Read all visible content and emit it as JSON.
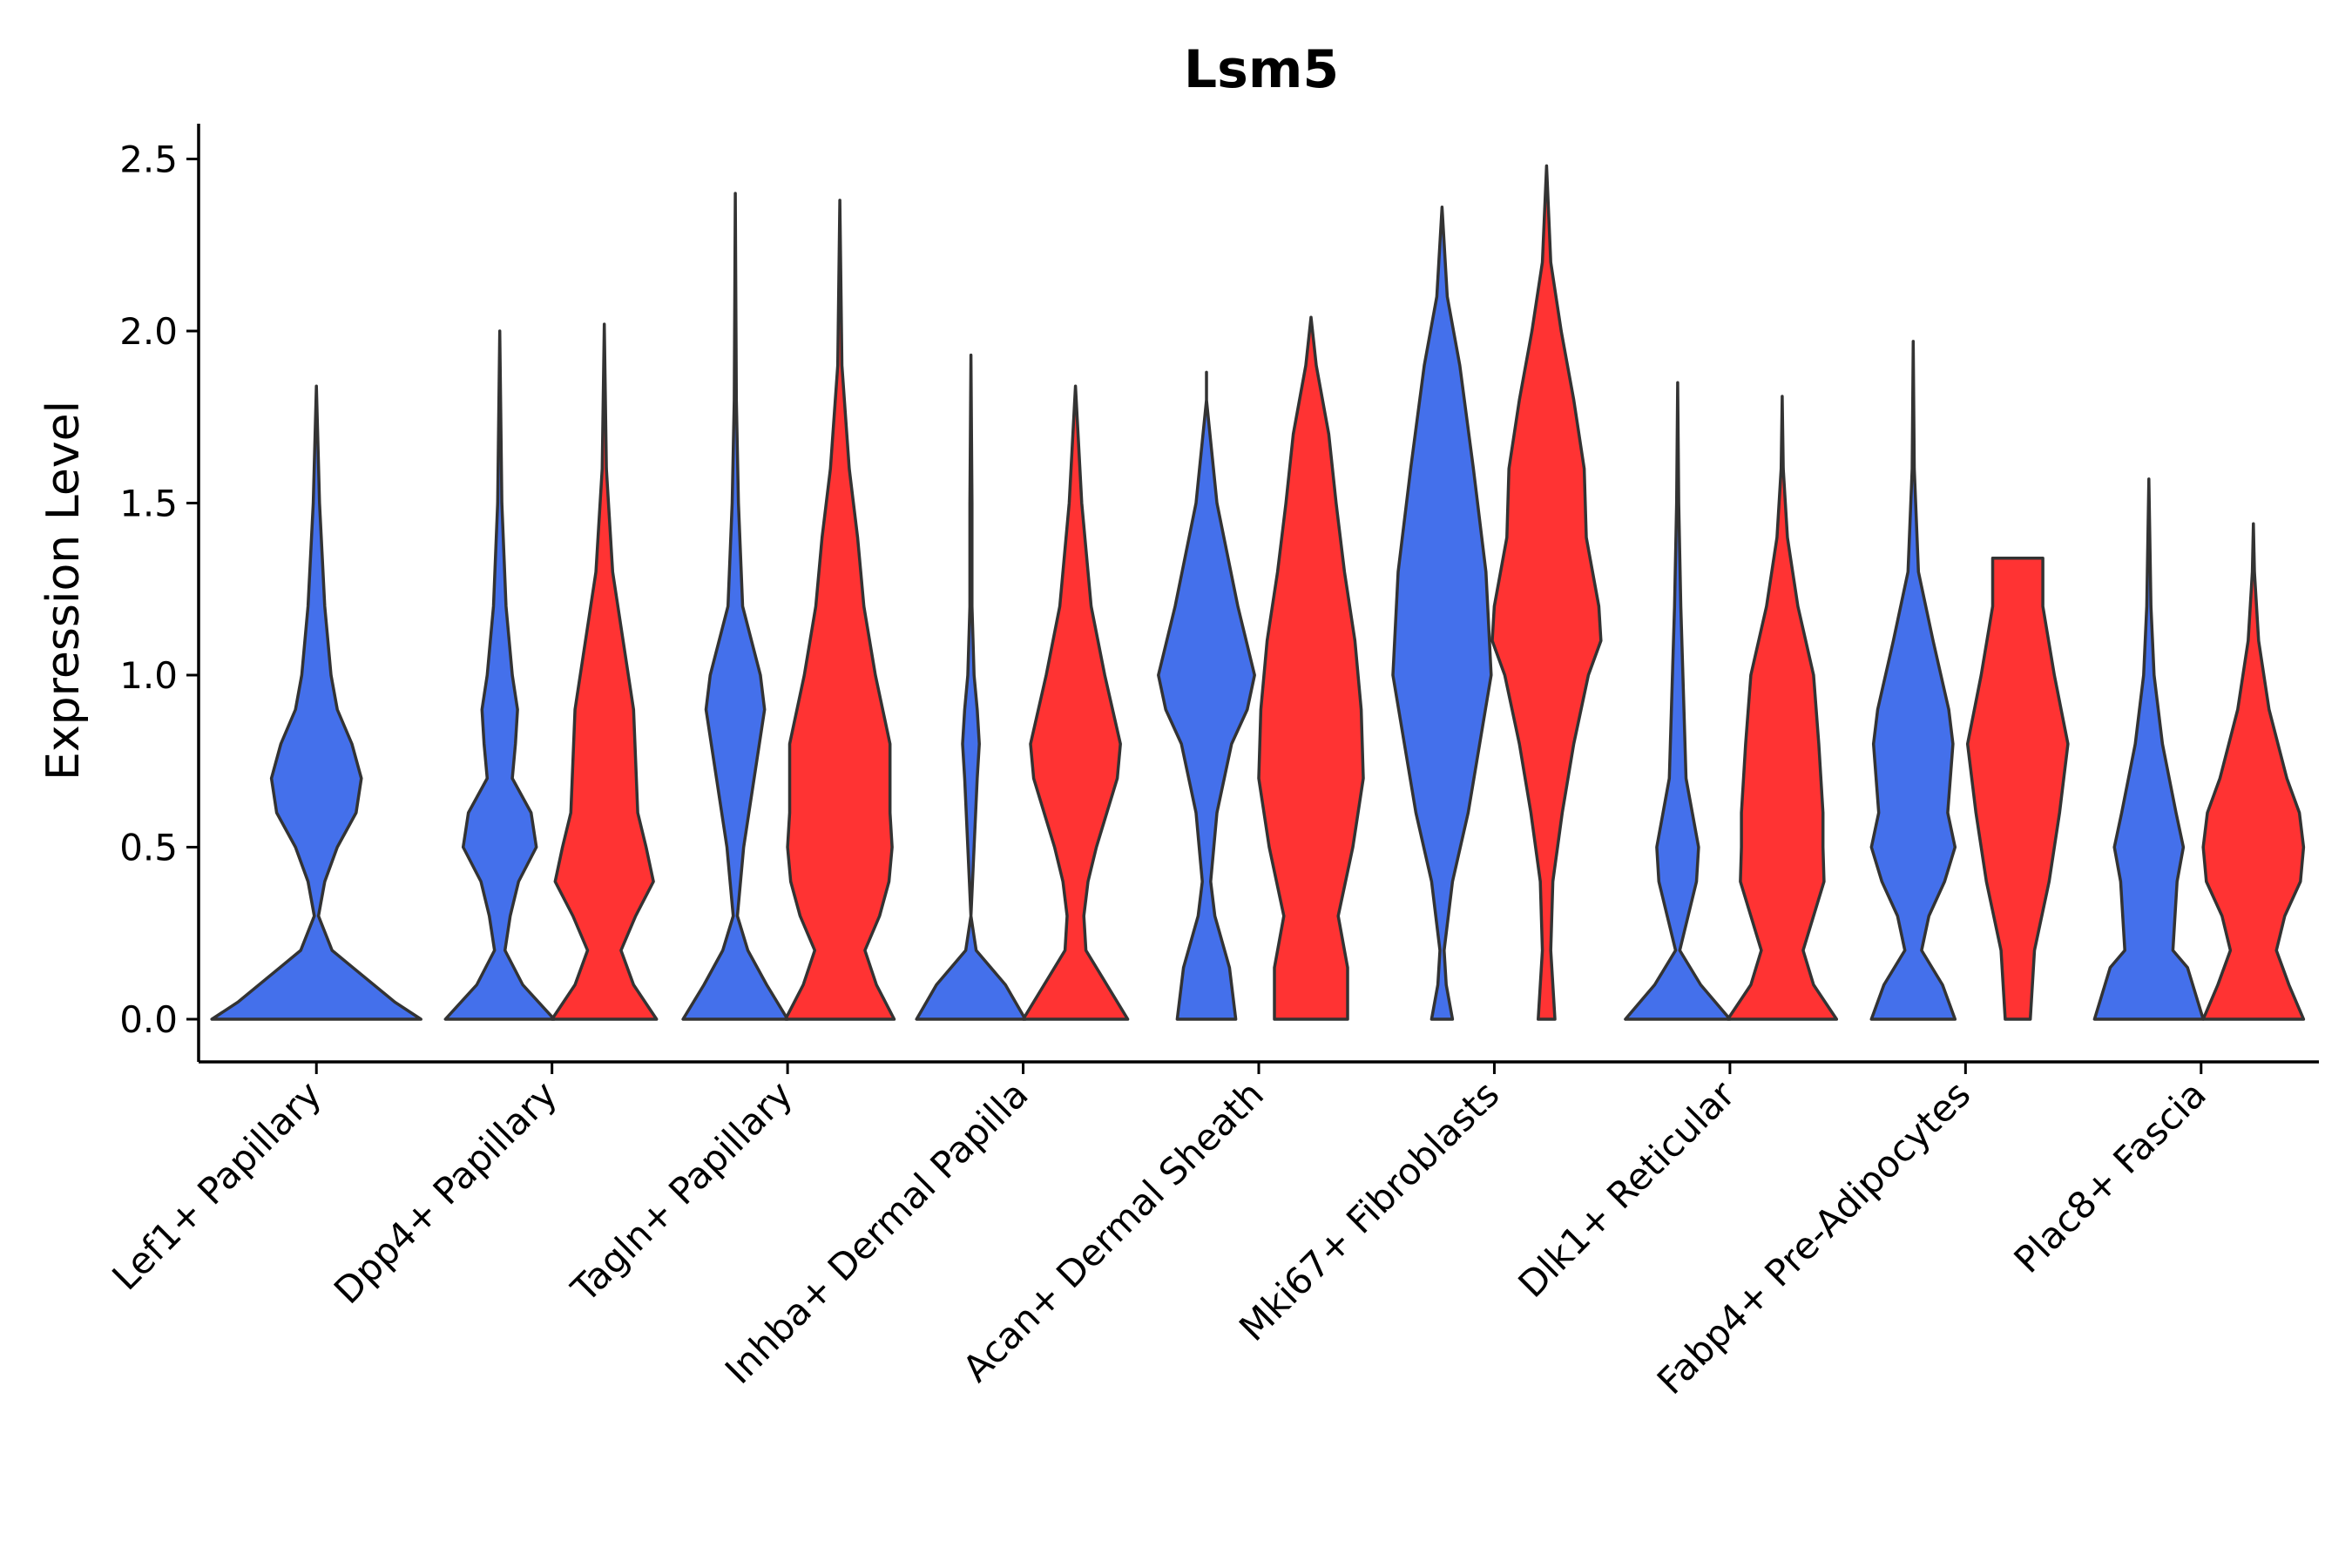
{
  "chart_data": {
    "type": "violin",
    "title": "Lsm5",
    "xlabel": "",
    "ylabel": "Expression Level",
    "ylim": [
      -0.12,
      2.6
    ],
    "yticks": [
      0.0,
      0.5,
      1.0,
      1.5,
      2.0,
      2.5
    ],
    "ytick_labels": [
      "0.0",
      "0.5",
      "1.0",
      "1.5",
      "2.0",
      "2.5"
    ],
    "grid": false,
    "legend": "none",
    "categories": [
      "Lef1+ Papillary",
      "Dpp4+ Papillary",
      "Tagln+ Papillary",
      "Inhba+ Dermal Papilla",
      "Acan+ Dermal Sheath",
      "Mki67+ Fibroblasts",
      "Dlk1+ Reticular",
      "Fabp4+ Pre-Adipocytes",
      "Plac8+ Fascia"
    ],
    "series": [
      {
        "name": "blue",
        "color": "#4470EB",
        "violins": [
          {
            "category": "Lef1+ Papillary",
            "max": 1.84,
            "profile": [
              [
                0.0,
                1.0
              ],
              [
                0.05,
                0.75
              ],
              [
                0.15,
                0.35
              ],
              [
                0.2,
                0.15
              ],
              [
                0.3,
                0.02
              ],
              [
                0.4,
                0.08
              ],
              [
                0.5,
                0.2
              ],
              [
                0.6,
                0.38
              ],
              [
                0.7,
                0.43
              ],
              [
                0.8,
                0.34
              ],
              [
                0.9,
                0.2
              ],
              [
                1.0,
                0.14
              ],
              [
                1.2,
                0.08
              ],
              [
                1.5,
                0.03
              ],
              [
                1.84,
                0.0
              ]
            ]
          },
          {
            "category": "Dpp4+ Papillary",
            "max": 2.0,
            "profile": [
              [
                0.0,
                0.52
              ],
              [
                0.1,
                0.22
              ],
              [
                0.2,
                0.05
              ],
              [
                0.3,
                0.1
              ],
              [
                0.4,
                0.18
              ],
              [
                0.5,
                0.35
              ],
              [
                0.6,
                0.3
              ],
              [
                0.7,
                0.12
              ],
              [
                0.8,
                0.15
              ],
              [
                0.9,
                0.17
              ],
              [
                1.0,
                0.12
              ],
              [
                1.2,
                0.06
              ],
              [
                1.5,
                0.02
              ],
              [
                2.0,
                0.0
              ]
            ]
          },
          {
            "category": "Tagln+ Papillary",
            "max": 2.4,
            "profile": [
              [
                0.0,
                0.5
              ],
              [
                0.1,
                0.3
              ],
              [
                0.2,
                0.12
              ],
              [
                0.3,
                0.02
              ],
              [
                0.5,
                0.08
              ],
              [
                0.7,
                0.18
              ],
              [
                0.9,
                0.28
              ],
              [
                1.0,
                0.24
              ],
              [
                1.2,
                0.07
              ],
              [
                1.5,
                0.03
              ],
              [
                1.8,
                0.01
              ],
              [
                2.4,
                0.0
              ]
            ]
          },
          {
            "category": "Inhba+ Dermal Papilla",
            "max": 1.93,
            "profile": [
              [
                0.0,
                0.52
              ],
              [
                0.1,
                0.33
              ],
              [
                0.2,
                0.05
              ],
              [
                0.3,
                0.0
              ],
              [
                0.5,
                0.03
              ],
              [
                0.7,
                0.06
              ],
              [
                0.8,
                0.08
              ],
              [
                0.9,
                0.06
              ],
              [
                1.0,
                0.03
              ],
              [
                1.2,
                0.01
              ],
              [
                1.5,
                0.01
              ],
              [
                1.93,
                0.0
              ]
            ]
          },
          {
            "category": "Acan+ Dermal Sheath",
            "max": 1.88,
            "profile": [
              [
                0.0,
                0.28
              ],
              [
                0.15,
                0.22
              ],
              [
                0.3,
                0.08
              ],
              [
                0.4,
                0.04
              ],
              [
                0.6,
                0.1
              ],
              [
                0.8,
                0.24
              ],
              [
                0.9,
                0.39
              ],
              [
                1.0,
                0.46
              ],
              [
                1.2,
                0.3
              ],
              [
                1.5,
                0.1
              ],
              [
                1.8,
                0.0
              ],
              [
                1.88,
                0.0
              ]
            ]
          },
          {
            "category": "Mki67+ Fibroblasts",
            "max": 2.36,
            "profile": [
              [
                0.0,
                0.1
              ],
              [
                0.1,
                0.04
              ],
              [
                0.2,
                0.02
              ],
              [
                0.4,
                0.1
              ],
              [
                0.6,
                0.25
              ],
              [
                0.8,
                0.36
              ],
              [
                1.0,
                0.47
              ],
              [
                1.3,
                0.42
              ],
              [
                1.6,
                0.3
              ],
              [
                1.9,
                0.17
              ],
              [
                2.1,
                0.05
              ],
              [
                2.36,
                0.0
              ]
            ]
          },
          {
            "category": "Dlk1+ Reticular",
            "max": 1.85,
            "profile": [
              [
                0.0,
                0.5
              ],
              [
                0.1,
                0.22
              ],
              [
                0.2,
                0.02
              ],
              [
                0.3,
                0.1
              ],
              [
                0.4,
                0.18
              ],
              [
                0.5,
                0.2
              ],
              [
                0.6,
                0.14
              ],
              [
                0.7,
                0.08
              ],
              [
                0.9,
                0.06
              ],
              [
                1.2,
                0.03
              ],
              [
                1.5,
                0.01
              ],
              [
                1.85,
                0.0
              ]
            ]
          },
          {
            "category": "Fabp4+ Pre-Adipocytes",
            "max": 1.97,
            "profile": [
              [
                0.0,
                0.4
              ],
              [
                0.1,
                0.28
              ],
              [
                0.2,
                0.08
              ],
              [
                0.3,
                0.15
              ],
              [
                0.4,
                0.3
              ],
              [
                0.5,
                0.4
              ],
              [
                0.6,
                0.33
              ],
              [
                0.8,
                0.38
              ],
              [
                0.9,
                0.34
              ],
              [
                1.1,
                0.19
              ],
              [
                1.3,
                0.05
              ],
              [
                1.6,
                0.01
              ],
              [
                1.97,
                0.0
              ]
            ]
          },
          {
            "category": "Plac8+ Fascia",
            "max": 1.57,
            "profile": [
              [
                0.0,
                0.52
              ],
              [
                0.15,
                0.37
              ],
              [
                0.2,
                0.23
              ],
              [
                0.4,
                0.27
              ],
              [
                0.5,
                0.33
              ],
              [
                0.6,
                0.26
              ],
              [
                0.8,
                0.13
              ],
              [
                1.0,
                0.05
              ],
              [
                1.2,
                0.02
              ],
              [
                1.57,
                0.0
              ]
            ]
          }
        ]
      },
      {
        "name": "red",
        "color": "#FF3333",
        "violins": [
          {
            "category": "Dpp4+ Papillary",
            "max": 2.02,
            "profile": [
              [
                0.0,
                0.5
              ],
              [
                0.1,
                0.28
              ],
              [
                0.2,
                0.16
              ],
              [
                0.3,
                0.3
              ],
              [
                0.4,
                0.47
              ],
              [
                0.5,
                0.4
              ],
              [
                0.6,
                0.32
              ],
              [
                0.9,
                0.28
              ],
              [
                1.1,
                0.18
              ],
              [
                1.3,
                0.08
              ],
              [
                1.6,
                0.02
              ],
              [
                2.02,
                0.0
              ]
            ]
          },
          {
            "category": "Tagln+ Papillary",
            "max": 2.38,
            "profile": [
              [
                0.0,
                0.52
              ],
              [
                0.1,
                0.35
              ],
              [
                0.2,
                0.24
              ],
              [
                0.3,
                0.38
              ],
              [
                0.4,
                0.47
              ],
              [
                0.5,
                0.5
              ],
              [
                0.6,
                0.48
              ],
              [
                0.8,
                0.48
              ],
              [
                1.0,
                0.34
              ],
              [
                1.2,
                0.23
              ],
              [
                1.4,
                0.17
              ],
              [
                1.6,
                0.09
              ],
              [
                1.9,
                0.02
              ],
              [
                2.38,
                0.0
              ]
            ]
          },
          {
            "category": "Inhba+ Dermal Papilla",
            "max": 1.84,
            "profile": [
              [
                0.0,
                0.5
              ],
              [
                0.1,
                0.3
              ],
              [
                0.2,
                0.1
              ],
              [
                0.3,
                0.08
              ],
              [
                0.4,
                0.12
              ],
              [
                0.5,
                0.2
              ],
              [
                0.7,
                0.4
              ],
              [
                0.8,
                0.43
              ],
              [
                1.0,
                0.28
              ],
              [
                1.2,
                0.15
              ],
              [
                1.5,
                0.06
              ],
              [
                1.84,
                0.0
              ]
            ]
          },
          {
            "category": "Acan+ Dermal Sheath",
            "max": 2.04,
            "profile": [
              [
                0.0,
                0.35
              ],
              [
                0.15,
                0.35
              ],
              [
                0.3,
                0.26
              ],
              [
                0.5,
                0.4
              ],
              [
                0.7,
                0.5
              ],
              [
                0.9,
                0.48
              ],
              [
                1.1,
                0.42
              ],
              [
                1.3,
                0.32
              ],
              [
                1.5,
                0.24
              ],
              [
                1.7,
                0.17
              ],
              [
                1.9,
                0.05
              ],
              [
                2.04,
                0.0
              ]
            ]
          },
          {
            "category": "Mki67+ Fibroblasts",
            "max": 2.48,
            "profile": [
              [
                0.0,
                0.08
              ],
              [
                0.2,
                0.04
              ],
              [
                0.4,
                0.06
              ],
              [
                0.6,
                0.15
              ],
              [
                0.8,
                0.26
              ],
              [
                1.0,
                0.4
              ],
              [
                1.1,
                0.52
              ],
              [
                1.2,
                0.5
              ],
              [
                1.4,
                0.38
              ],
              [
                1.6,
                0.36
              ],
              [
                1.8,
                0.26
              ],
              [
                2.0,
                0.14
              ],
              [
                2.2,
                0.04
              ],
              [
                2.48,
                0.0
              ]
            ]
          },
          {
            "category": "Dlk1+ Reticular",
            "max": 1.81,
            "profile": [
              [
                0.0,
                0.52
              ],
              [
                0.1,
                0.3
              ],
              [
                0.2,
                0.2
              ],
              [
                0.3,
                0.3
              ],
              [
                0.4,
                0.4
              ],
              [
                0.5,
                0.39
              ],
              [
                0.6,
                0.39
              ],
              [
                0.8,
                0.35
              ],
              [
                1.0,
                0.3
              ],
              [
                1.2,
                0.15
              ],
              [
                1.4,
                0.05
              ],
              [
                1.6,
                0.01
              ],
              [
                1.81,
                0.0
              ]
            ]
          },
          {
            "category": "Fabp4+ Pre-Adipocytes",
            "max": 1.34,
            "profile": [
              [
                0.0,
                0.12
              ],
              [
                0.2,
                0.16
              ],
              [
                0.4,
                0.3
              ],
              [
                0.6,
                0.4
              ],
              [
                0.8,
                0.48
              ],
              [
                1.0,
                0.35
              ],
              [
                1.2,
                0.24
              ],
              [
                1.34,
                0.24
              ]
            ]
          },
          {
            "category": "Plac8+ Fascia",
            "max": 1.44,
            "profile": [
              [
                0.0,
                0.48
              ],
              [
                0.1,
                0.34
              ],
              [
                0.2,
                0.22
              ],
              [
                0.3,
                0.3
              ],
              [
                0.4,
                0.45
              ],
              [
                0.5,
                0.48
              ],
              [
                0.6,
                0.44
              ],
              [
                0.7,
                0.32
              ],
              [
                0.9,
                0.15
              ],
              [
                1.1,
                0.05
              ],
              [
                1.3,
                0.01
              ],
              [
                1.44,
                0.0
              ]
            ]
          }
        ]
      }
    ]
  }
}
